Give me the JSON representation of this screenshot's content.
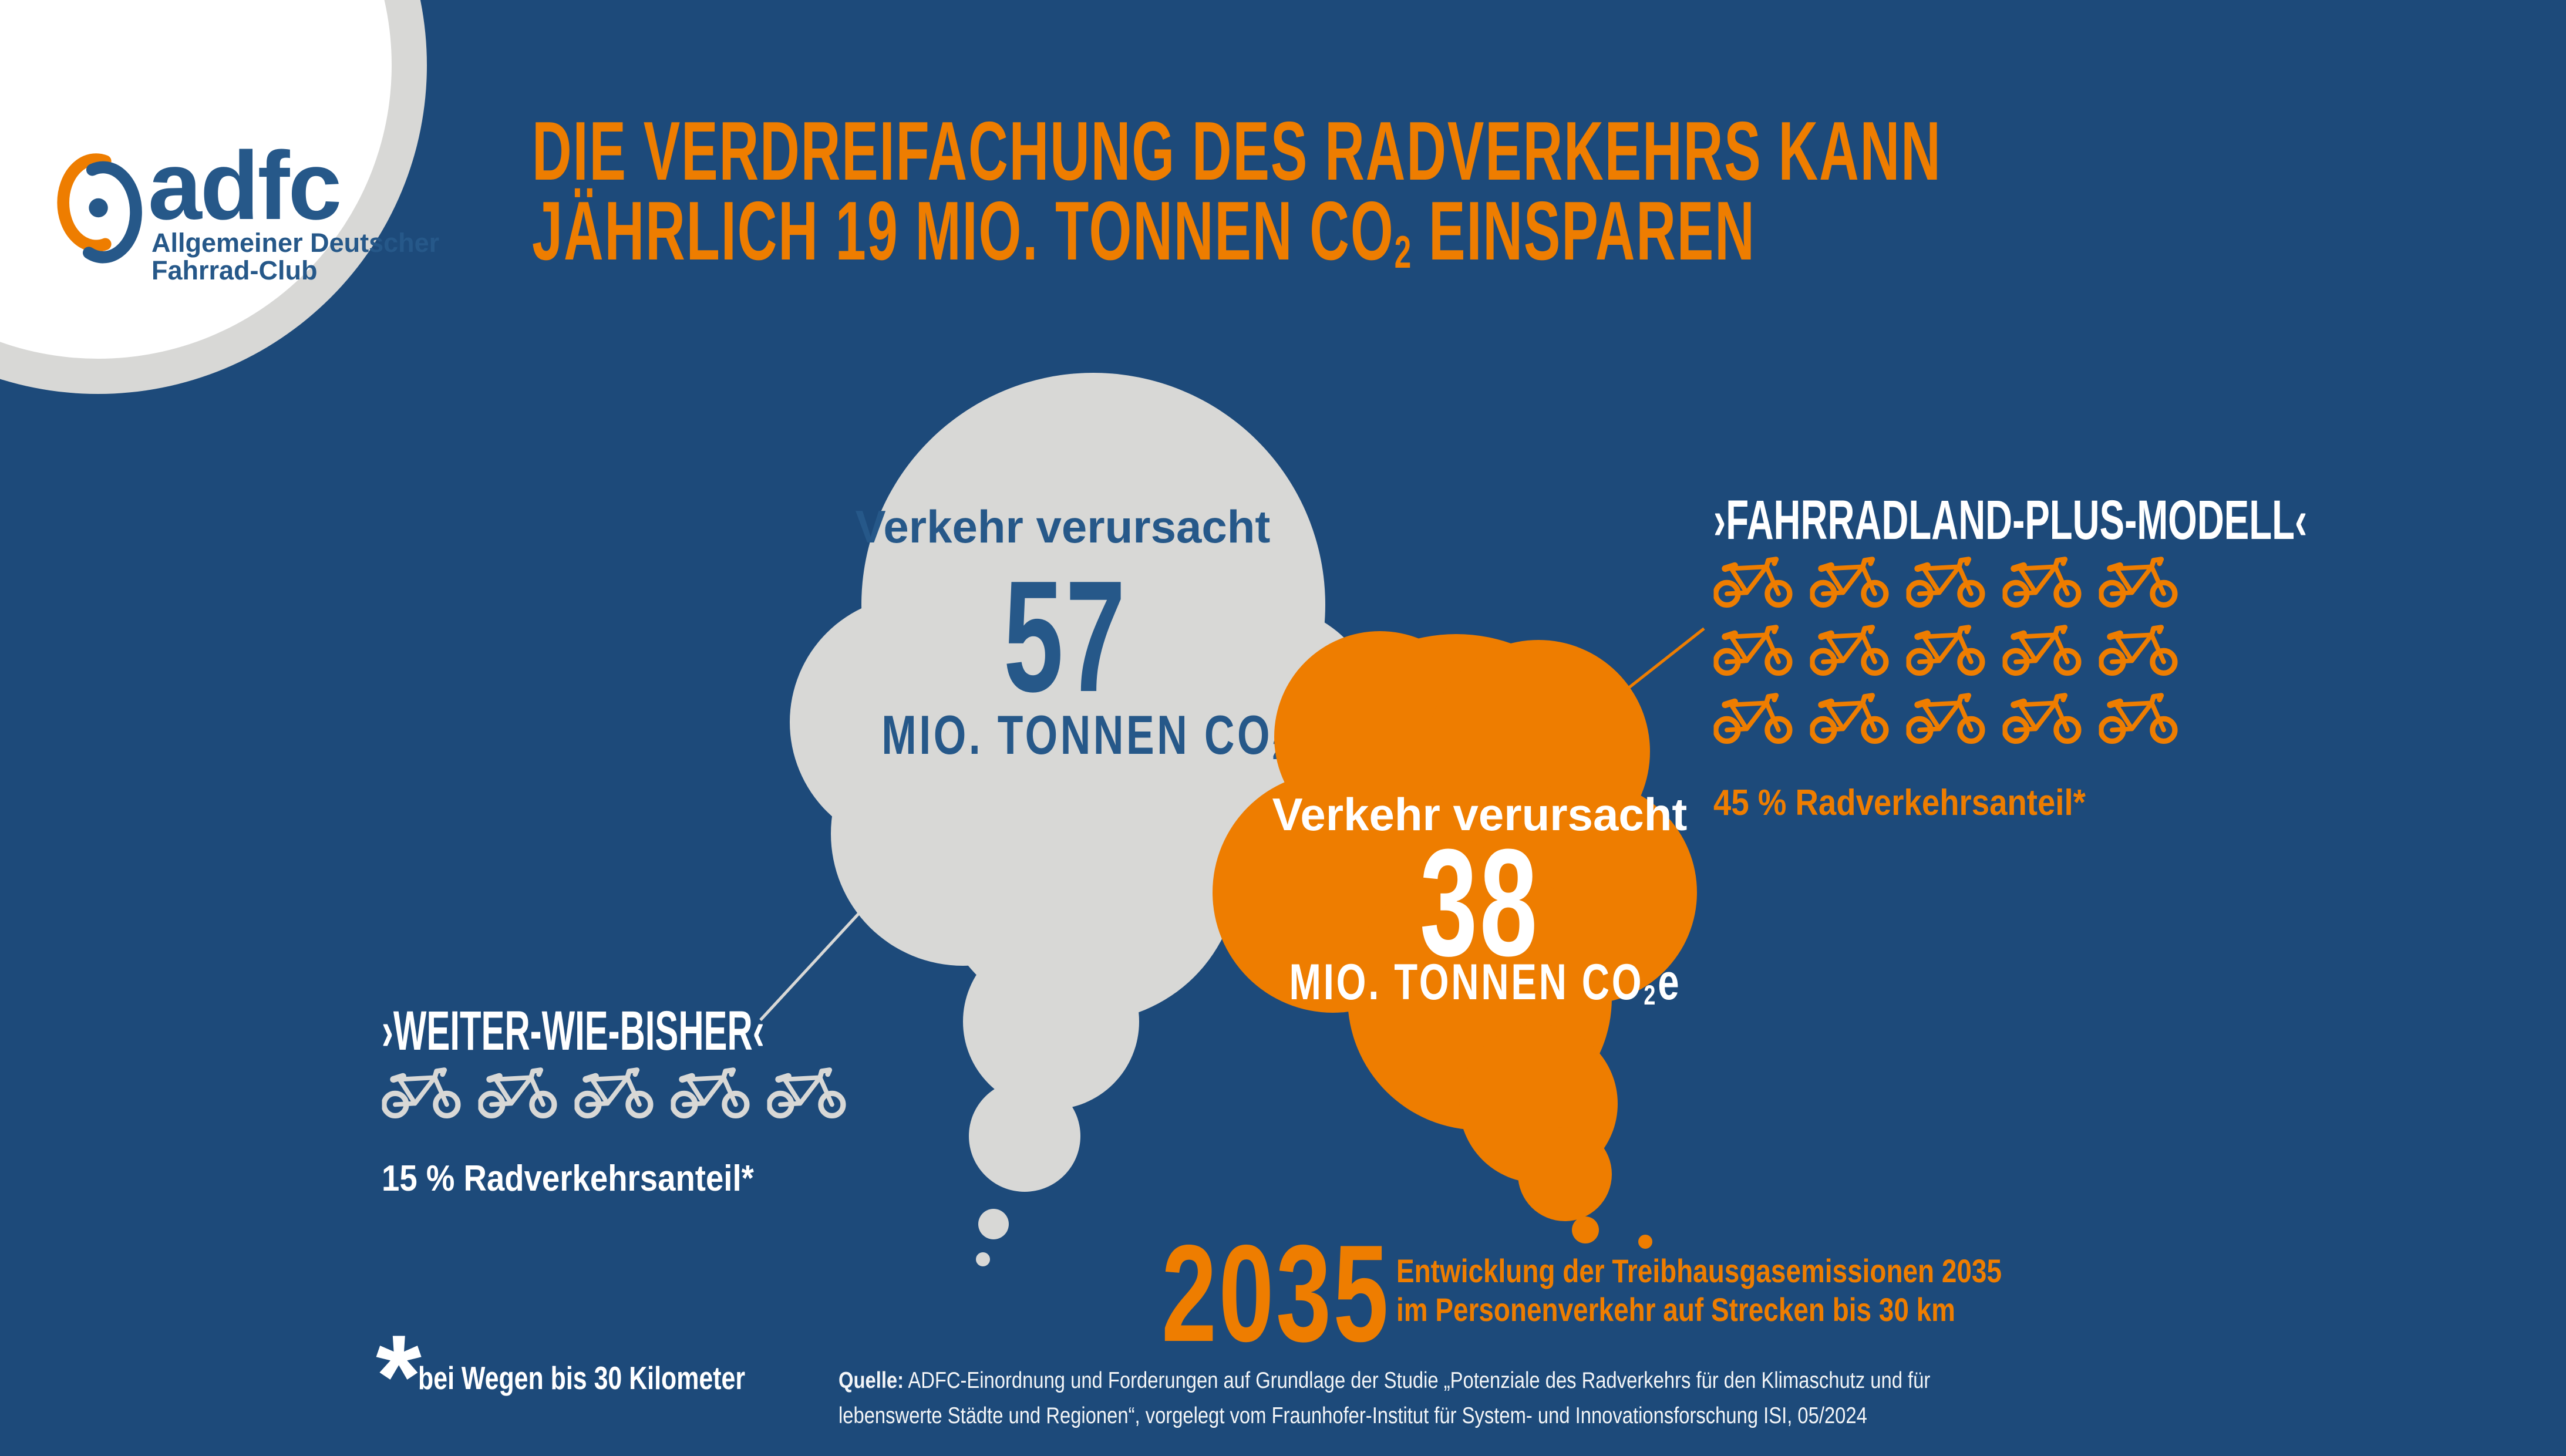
{
  "colors": {
    "background": "#1d4a7a",
    "orange": "#ee7d00",
    "light_gray": "#d8d8d6",
    "brand_blue": "#265889",
    "white": "#ffffff"
  },
  "logo": {
    "wordmark": "adfc",
    "subtitle_line1": "Allgemeiner Deutscher",
    "subtitle_line2": "Fahrrad-Club"
  },
  "title": {
    "line1": "DIE VERDREIFACHUNG DES RADVERKEHRS KANN",
    "line2_prefix": "JÄHRLICH 19 MIO. TONNEN CO",
    "line2_sub": "2",
    "line2_suffix": " EINSPAREN"
  },
  "bubble_gray": {
    "intro": "Verkehr verursacht",
    "value": "57",
    "unit_prefix": "MIO. TONNEN CO",
    "unit_sub": "2",
    "unit_suffix": "e"
  },
  "bubble_orange": {
    "intro": "Verkehr verursacht",
    "value": "38",
    "unit_prefix": "MIO. TONNEN CO",
    "unit_sub": "2",
    "unit_suffix": "e"
  },
  "scenario_bisher": {
    "label": "›WEITER-WIE-BISHER‹",
    "share_label": "15 % Radverkehrsanteil*",
    "bike_count": 5,
    "bikes_per_row": 5
  },
  "scenario_plus": {
    "label": "›FAHRRADLAND-PLUS-MODELL‹",
    "share_label": "45 % Radverkehrsanteil*",
    "bike_count": 15,
    "bikes_per_row": 5
  },
  "year_label": {
    "year": "2035",
    "caption_line1": "Entwicklung der Treibhausgasemissionen 2035",
    "caption_line2": "im Personenverkehr auf Strecken bis 30 km"
  },
  "footnote": {
    "symbol": "*",
    "text": "bei Wegen bis 30 Kilometer"
  },
  "source": {
    "label": "Quelle:",
    "line1": " ADFC-Einordnung und Forderungen auf Grundlage der Studie „Potenziale des Radverkehrs für den Klimaschutz und für",
    "line2": "lebenswerte Städte und Regionen“, vorgelegt vom Fraunhofer-Institut für System- und Innovationsforschung ISI, 05/2024"
  },
  "chart_data": {
    "type": "pictorial-comparison",
    "title": "Die Verdreifachung des Radverkehrs kann jährlich 19 Mio. Tonnen CO2 einsparen",
    "year": 2035,
    "unit": "Mio. Tonnen CO2e",
    "series": [
      {
        "name": "›WEITER-WIE-BISHER‹",
        "emissions": 57,
        "radverkehrsanteil_percent": 15,
        "bike_icons": 5,
        "color": "#d8d8d6"
      },
      {
        "name": "›FAHRRADLAND-PLUS-MODELL‹",
        "emissions": 38,
        "radverkehrsanteil_percent": 45,
        "bike_icons": 15,
        "color": "#ee7d00"
      }
    ],
    "savings_mio_tonnen_co2": 19
  }
}
